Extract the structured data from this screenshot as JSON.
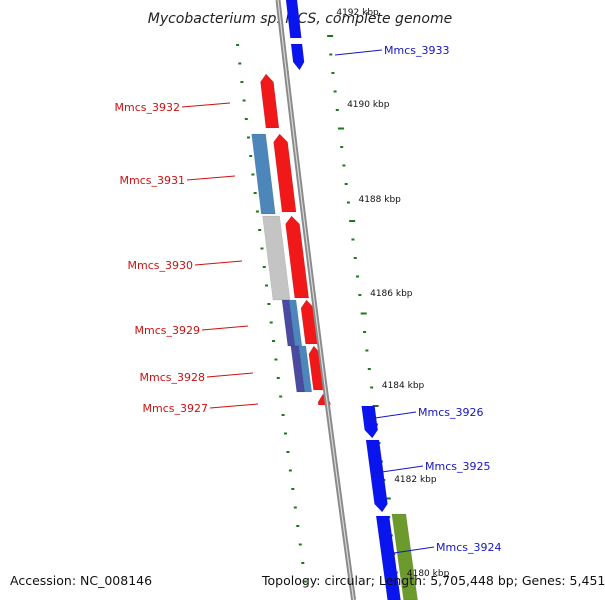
{
  "title": "Mycobacterium sp. MCS, complete genome",
  "footer": {
    "accession": "Accession: NC_008146",
    "summary": "Topology: circular; Length: 5,705,448 bp; Genes: 5,451"
  },
  "colors": {
    "forward": "#0a14ee",
    "reverse": "#f01818",
    "steelblue": "#4d86bb",
    "gray": "#c4c4c4",
    "slate": "#4a4aa0",
    "olive": "#6d9a2c",
    "backbone": "#8a8a8a",
    "tick": "#1a7a1a",
    "forward_label": "#1515c0",
    "reverse_label": "#cc1111"
  },
  "kbp_ticks": [
    "4192 kbp",
    "4190 kbp",
    "4188 kbp",
    "4186 kbp",
    "4184 kbp",
    "4182 kbp",
    "4180 kbp"
  ],
  "forward_genes": [
    {
      "name": "Mmcs_3933"
    },
    {
      "name": "Mmcs_3926"
    },
    {
      "name": "Mmcs_3925"
    },
    {
      "name": "Mmcs_3924"
    }
  ],
  "reverse_genes": [
    {
      "name": "Mmcs_3932"
    },
    {
      "name": "Mmcs_3931"
    },
    {
      "name": "Mmcs_3930"
    },
    {
      "name": "Mmcs_3929"
    },
    {
      "name": "Mmcs_3928"
    },
    {
      "name": "Mmcs_3927"
    }
  ]
}
